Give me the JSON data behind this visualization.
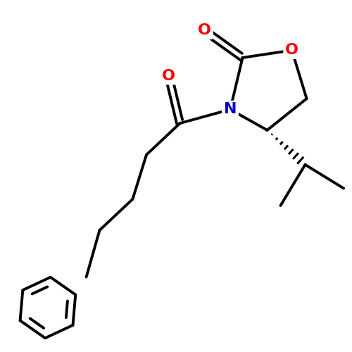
{
  "background_color": "#ffffff",
  "bond_color": "#000000",
  "bond_width": 2.8,
  "atom_colors": {
    "O": "#ff0000",
    "N": "#0000cd",
    "C": "#000000"
  },
  "figsize": [
    5.0,
    5.0
  ],
  "dpi": 100
}
